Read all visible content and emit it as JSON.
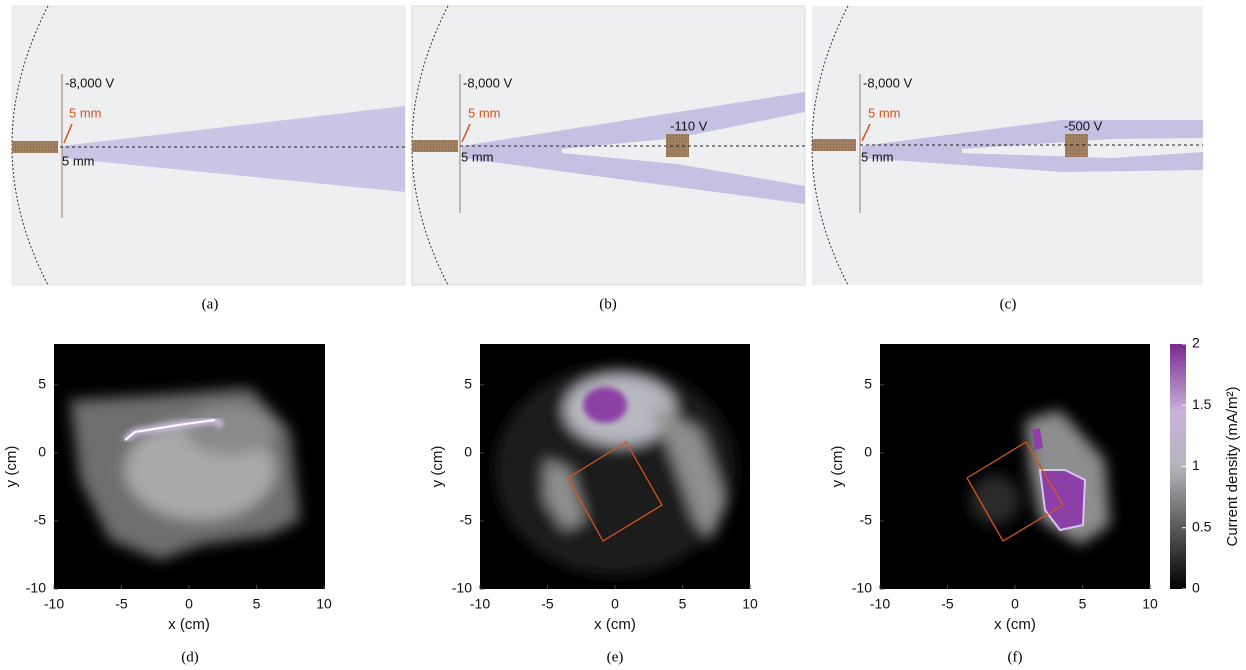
{
  "top_panels": [
    {
      "caption": "(a)",
      "source_voltage": "-8,000 V",
      "gap_label_orange": "5 mm",
      "gap_label_black": "5 mm"
    },
    {
      "caption": "(b)",
      "source_voltage": "-8,000 V",
      "gap_label_orange": "5 mm",
      "gap_label_black": "5 mm",
      "target_voltage": "-110 V"
    },
    {
      "caption": "(c)",
      "source_voltage": "-8,000 V",
      "gap_label_orange": "5 mm",
      "gap_label_black": "5 mm",
      "target_voltage": "-500 V"
    }
  ],
  "heatmaps": {
    "panels": [
      {
        "caption": "(d)"
      },
      {
        "caption": "(e)"
      },
      {
        "caption": "(f)"
      }
    ],
    "axes": {
      "xlabel": "x (cm)",
      "ylabel": "y (cm)",
      "xlim": [
        -10,
        10
      ],
      "ylim": [
        -10,
        8
      ],
      "xticks": [
        -10,
        -5,
        0,
        5,
        10
      ],
      "yticks": [
        -10,
        -5,
        0,
        5
      ]
    },
    "colorbar": {
      "label": "Current density (mA/m²)",
      "lim": [
        0,
        2
      ],
      "ticks": [
        0,
        0.5,
        1,
        1.5,
        2
      ]
    }
  }
}
